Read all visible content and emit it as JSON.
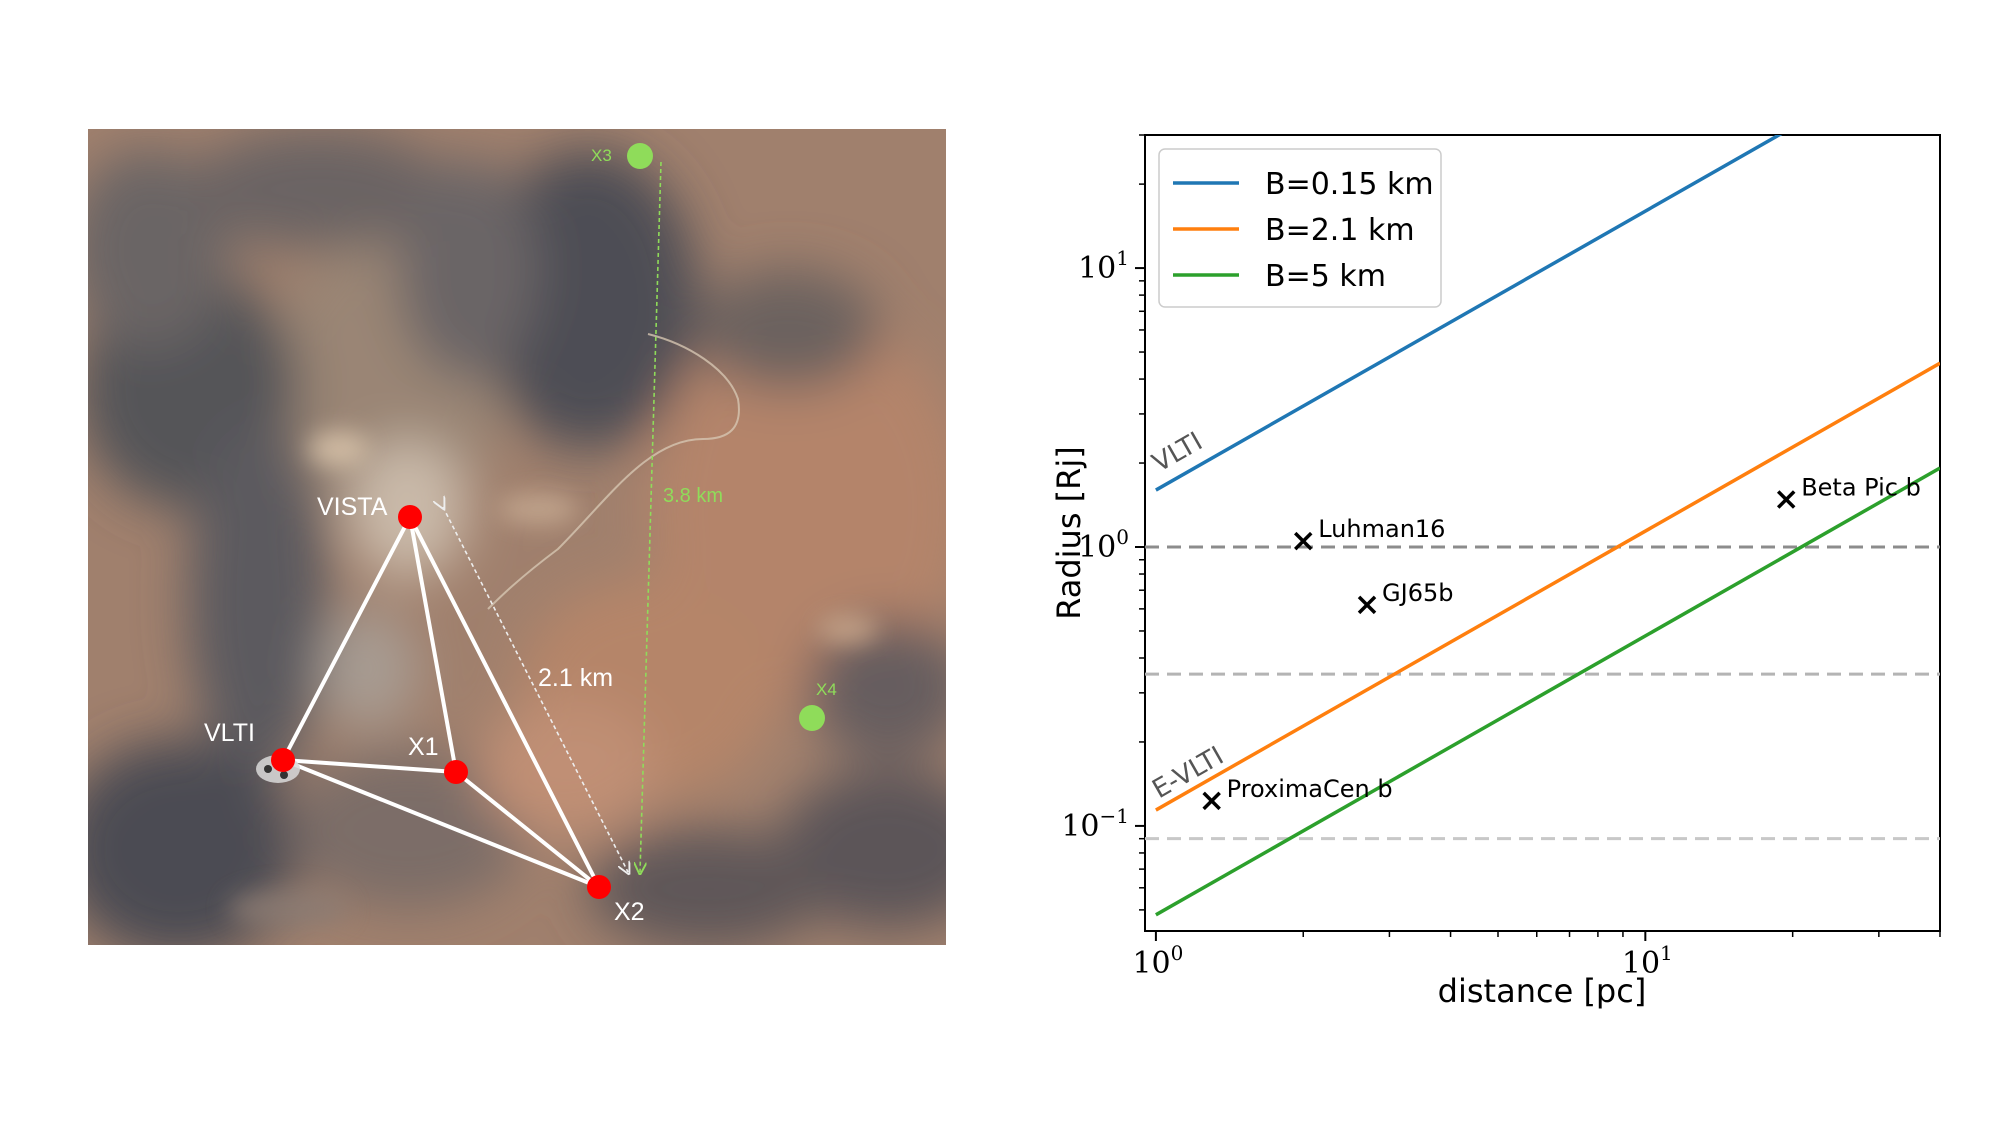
{
  "map": {
    "sites": [
      {
        "name": "VLTI",
        "role": "telescope"
      },
      {
        "name": "VISTA",
        "role": "telescope"
      },
      {
        "name": "X1",
        "role": "telescope"
      },
      {
        "name": "X2",
        "role": "telescope"
      },
      {
        "name": "X3",
        "role": "candidate"
      },
      {
        "name": "X4",
        "role": "candidate"
      }
    ],
    "distances": [
      "2.1 km",
      "3.8 km"
    ],
    "colors": {
      "telescope": "#ff0000",
      "candidate": "#8fdc5a",
      "baseline": "#ffffff"
    }
  },
  "chart_data": {
    "type": "line",
    "xlabel": "distance [pc]",
    "ylabel": "Radius [Rj]",
    "xscale": "log",
    "yscale": "log",
    "xlim": [
      0.95,
      40
    ],
    "ylim": [
      0.042,
      30
    ],
    "xticks": [
      {
        "value": 1,
        "label": "10^0"
      },
      {
        "value": 10,
        "label": "10^1"
      }
    ],
    "yticks": [
      {
        "value": 0.1,
        "label": "10^-1"
      },
      {
        "value": 1,
        "label": "10^0"
      },
      {
        "value": 10,
        "label": "10^1"
      }
    ],
    "legend_position": "top-left",
    "series": [
      {
        "name": "B=0.15 km",
        "color": "#1f77b4",
        "x": [
          1,
          40
        ],
        "y": [
          1.6,
          64
        ]
      },
      {
        "name": "B=2.1 km",
        "color": "#ff7f0e",
        "x": [
          1,
          40
        ],
        "y": [
          0.114,
          4.56
        ]
      },
      {
        "name": "B=5 km",
        "color": "#2ca02c",
        "x": [
          1,
          40
        ],
        "y": [
          0.048,
          1.92
        ]
      }
    ],
    "hlines": [
      {
        "y": 1.0,
        "color": "#8c8c8c"
      },
      {
        "y": 0.35,
        "color": "#b4b4b4"
      },
      {
        "y": 0.09,
        "color": "#c8c8c8"
      }
    ],
    "points": [
      {
        "label": "Luhman16",
        "x": 2.0,
        "y": 1.05
      },
      {
        "label": "GJ65b",
        "x": 2.7,
        "y": 0.62
      },
      {
        "label": "Beta Pic b",
        "x": 19.4,
        "y": 1.48
      },
      {
        "label": "ProximaCen b",
        "x": 1.3,
        "y": 0.123
      }
    ],
    "line_annotations": [
      {
        "text": "VLTI",
        "x": 1.0,
        "y": 1.85
      },
      {
        "text": "E-VLTI",
        "x": 1.0,
        "y": 0.125
      }
    ]
  }
}
